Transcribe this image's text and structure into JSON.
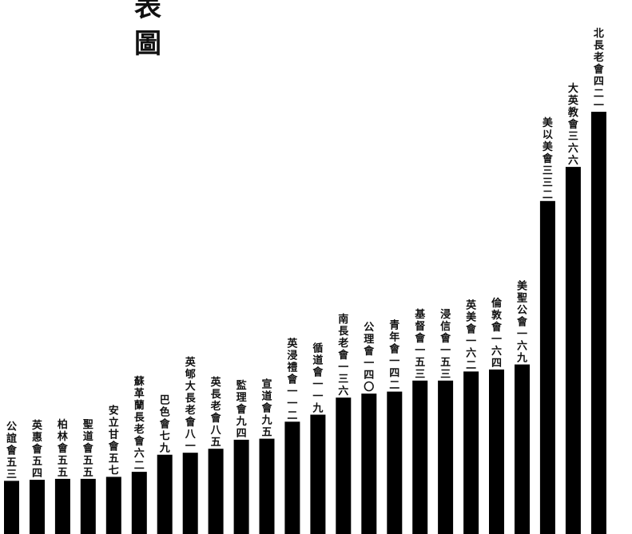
{
  "title_lines": [
    "表",
    "圖"
  ],
  "chart_data": {
    "type": "bar",
    "title": "表圖",
    "xlabel": "",
    "ylabel": "",
    "ylim": [
      0,
      480
    ],
    "grid": false,
    "legend": "none",
    "bar_color": "#000000",
    "background": "#ffffff",
    "categories": [
      "公誼會",
      "英惠會",
      "柏林會",
      "聖道會",
      "安立甘會",
      "蘇革蘭長老會",
      "巴色會",
      "英郇大長老會",
      "英長老會",
      "監理會",
      "宣道會",
      "英浸禮會",
      "循道會",
      "南長老會",
      "公理會",
      "青年會",
      "基督會",
      "浸信會",
      "英美會",
      "倫敦會",
      "美聖公會",
      "美以美會",
      "大英教會",
      "北長老會"
    ],
    "values": [
      53,
      54,
      55,
      55,
      57,
      62,
      79,
      81,
      85,
      94,
      95,
      112,
      119,
      136,
      140,
      142,
      153,
      153,
      162,
      164,
      169,
      332,
      366,
      421
    ],
    "labels": [
      "公誼會五三",
      "英惠會五四",
      "柏林會五五",
      "聖道會五五",
      "安立甘會五七",
      "蘇革蘭長老會六二",
      "巴色會七九",
      "英郇大長老會八一",
      "英長老會八五",
      "監理會九四",
      "宣道會九五",
      "英浸禮會一一二",
      "循道會一一九",
      "南長老會一三六",
      "公理會一四〇",
      "青年會一四二",
      "基督會一五三",
      "浸信會一五三",
      "英美會一六二",
      "倫敦會一六四",
      "美聖公會一六九",
      "美以美會三三二",
      "大英教會三六六",
      "北長老會四二一"
    ]
  }
}
